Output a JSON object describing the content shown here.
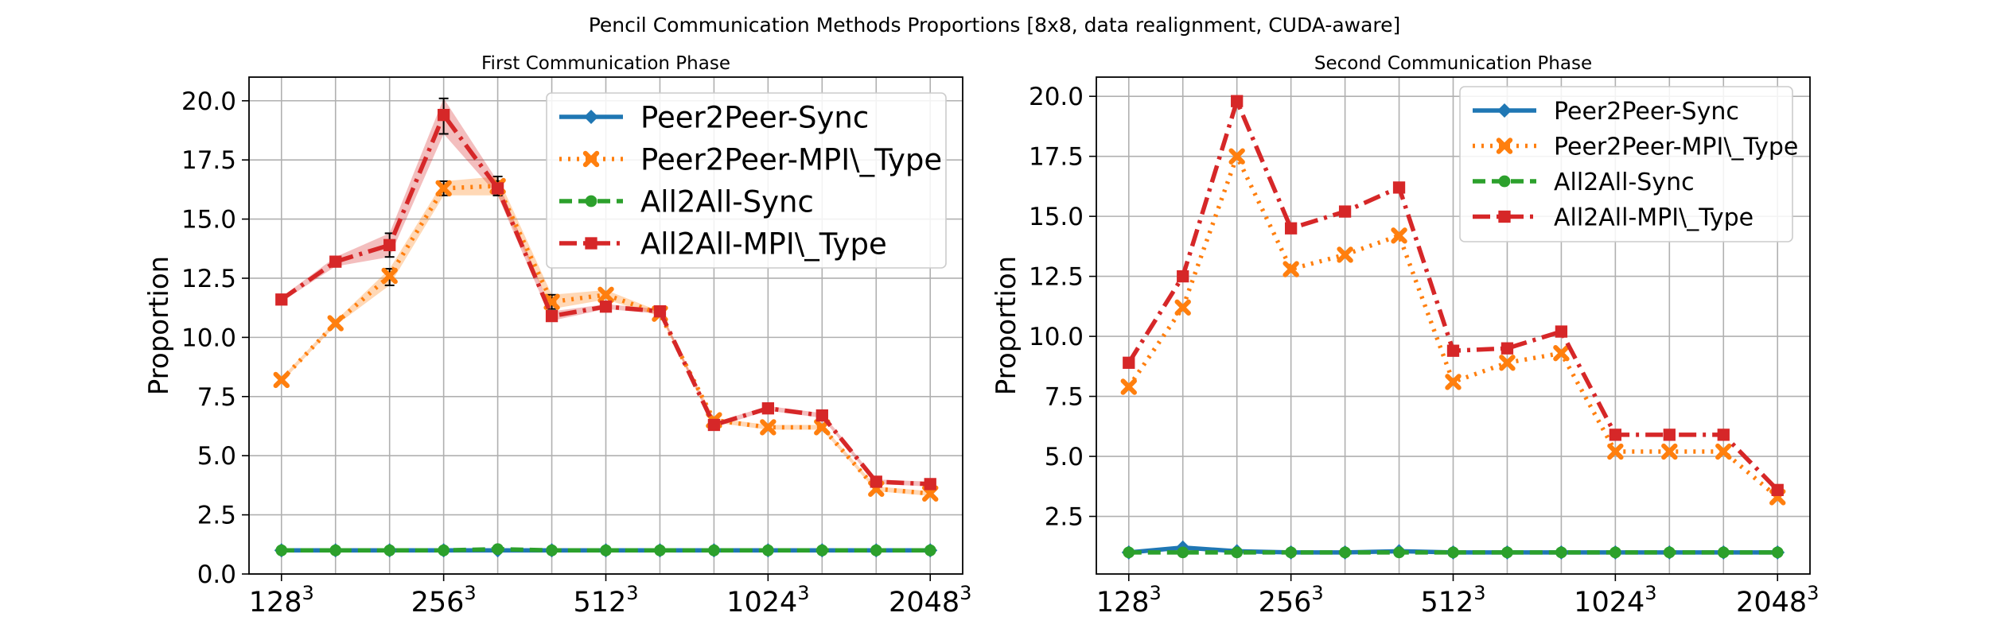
{
  "figure": {
    "title": "Pencil Communication Methods Proportions [8x8, data realignment, CUDA-aware]"
  },
  "series_styles": {
    "Peer2Peer-Sync": {
      "color": "#1f77b4",
      "marker": "diamond",
      "dash": "solid"
    },
    "Peer2Peer-MPI\\_Type": {
      "color": "#ff7f0e",
      "marker": "x",
      "dash": "dotted"
    },
    "All2All-Sync": {
      "color": "#2ca02c",
      "marker": "circle",
      "dash": "dashed"
    },
    "All2All-MPI\\_Type": {
      "color": "#d62728",
      "marker": "square",
      "dash": "dashdot"
    }
  },
  "chart_data": [
    {
      "type": "line",
      "title": "First Communication Phase",
      "xlabel": "",
      "ylabel": "Proportion",
      "x": [
        0,
        1,
        2,
        3,
        4,
        5,
        6,
        7,
        8,
        9,
        10,
        11,
        12
      ],
      "xtick_positions": [
        0,
        3,
        6,
        9,
        12
      ],
      "xtick_labels": [
        {
          "base": "128",
          "exp": "3"
        },
        {
          "base": "256",
          "exp": "3"
        },
        {
          "base": "512",
          "exp": "3"
        },
        {
          "base": "1024",
          "exp": "3"
        },
        {
          "base": "2048",
          "exp": "3"
        }
      ],
      "xlim": [
        -0.6,
        12.6
      ],
      "ylim": [
        0,
        21
      ],
      "yticks": [
        0.0,
        2.5,
        5.0,
        7.5,
        10.0,
        12.5,
        15.0,
        17.5,
        20.0
      ],
      "ytick_labels": [
        "0.0",
        "2.5",
        "5.0",
        "7.5",
        "10.0",
        "12.5",
        "15.0",
        "17.5",
        "20.0"
      ],
      "grid": true,
      "legend": "top-right",
      "legend_size": "large",
      "series": [
        {
          "name": "Peer2Peer-Sync",
          "values": [
            1.0,
            1.0,
            1.0,
            1.0,
            1.0,
            1.0,
            1.0,
            1.0,
            1.0,
            1.0,
            1.0,
            1.0,
            1.0
          ]
        },
        {
          "name": "Peer2Peer-MPI\\_Type",
          "values": [
            8.2,
            10.6,
            12.6,
            16.3,
            16.4,
            11.5,
            11.8,
            11.0,
            6.5,
            6.2,
            6.2,
            3.6,
            3.4
          ],
          "band_low": [
            8.1,
            10.5,
            12.2,
            16.0,
            16.0,
            11.2,
            11.6,
            10.9,
            6.4,
            6.1,
            6.1,
            3.5,
            3.3
          ],
          "band_high": [
            8.3,
            10.7,
            12.9,
            16.6,
            16.8,
            11.8,
            12.0,
            11.1,
            6.6,
            6.3,
            6.3,
            3.7,
            3.5
          ]
        },
        {
          "name": "All2All-Sync",
          "values": [
            1.0,
            1.0,
            1.0,
            1.0,
            1.05,
            1.0,
            1.0,
            1.0,
            1.0,
            1.0,
            1.0,
            1.0,
            1.0
          ]
        },
        {
          "name": "All2All-MPI\\_Type",
          "values": [
            11.6,
            13.2,
            13.9,
            19.4,
            16.3,
            10.9,
            11.3,
            11.1,
            6.3,
            7.0,
            6.7,
            3.9,
            3.8
          ],
          "band_low": [
            11.5,
            13.0,
            13.4,
            18.6,
            16.0,
            10.7,
            11.2,
            11.0,
            6.2,
            6.9,
            6.6,
            3.8,
            3.7
          ],
          "band_high": [
            11.7,
            13.4,
            14.4,
            20.1,
            16.6,
            11.1,
            11.4,
            11.2,
            6.4,
            7.1,
            6.8,
            4.0,
            3.9
          ]
        }
      ]
    },
    {
      "type": "line",
      "title": "Second Communication Phase",
      "xlabel": "",
      "ylabel": "Proportion",
      "x": [
        0,
        1,
        2,
        3,
        4,
        5,
        6,
        7,
        8,
        9,
        10,
        11,
        12
      ],
      "xtick_positions": [
        0,
        3,
        6,
        9,
        12
      ],
      "xtick_labels": [
        {
          "base": "128",
          "exp": "3"
        },
        {
          "base": "256",
          "exp": "3"
        },
        {
          "base": "512",
          "exp": "3"
        },
        {
          "base": "1024",
          "exp": "3"
        },
        {
          "base": "2048",
          "exp": "3"
        }
      ],
      "xlim": [
        -0.6,
        12.6
      ],
      "ylim": [
        0.1,
        20.8
      ],
      "yticks": [
        2.5,
        5.0,
        7.5,
        10.0,
        12.5,
        15.0,
        17.5,
        20.0
      ],
      "ytick_labels": [
        "2.5",
        "5.0",
        "7.5",
        "10.0",
        "12.5",
        "15.0",
        "17.5",
        "20.0"
      ],
      "grid": true,
      "legend": "top-right",
      "legend_size": "medium",
      "series": [
        {
          "name": "Peer2Peer-Sync",
          "values": [
            1.0,
            1.2,
            1.05,
            1.0,
            1.0,
            1.05,
            1.0,
            1.0,
            1.0,
            1.0,
            1.0,
            1.0,
            1.0
          ]
        },
        {
          "name": "Peer2Peer-MPI\\_Type",
          "values": [
            7.9,
            11.2,
            17.5,
            12.8,
            13.4,
            14.2,
            8.1,
            8.9,
            9.3,
            5.2,
            5.2,
            5.2,
            3.3
          ]
        },
        {
          "name": "All2All-Sync",
          "values": [
            1.0,
            1.0,
            1.0,
            1.0,
            1.0,
            1.0,
            1.0,
            1.0,
            1.0,
            1.0,
            1.0,
            1.0,
            1.0
          ]
        },
        {
          "name": "All2All-MPI\\_Type",
          "values": [
            8.9,
            12.5,
            19.8,
            14.5,
            15.2,
            16.2,
            9.4,
            9.5,
            10.2,
            5.9,
            5.9,
            5.9,
            3.6
          ]
        }
      ]
    }
  ]
}
